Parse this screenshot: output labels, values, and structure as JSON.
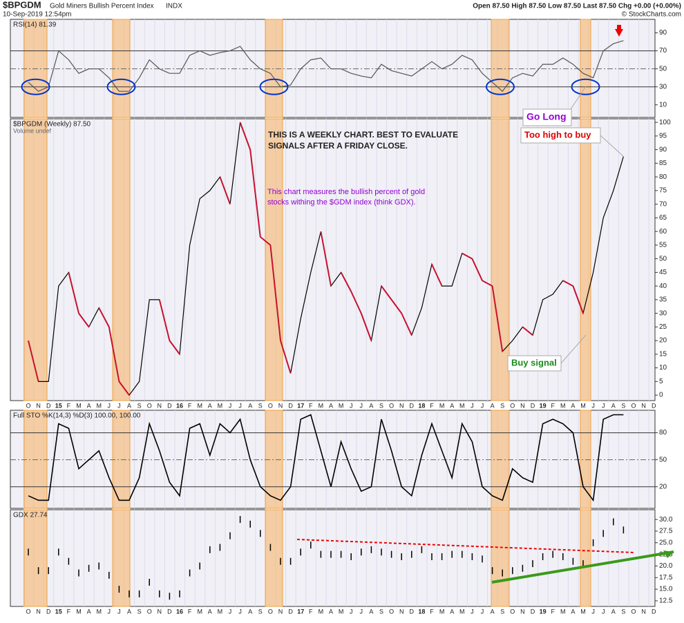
{
  "header": {
    "symbol": "$BPGDM",
    "name": "Gold Miners Bullish Percent Index",
    "exchange": "INDX",
    "date": "10-Sep-2019 12:54pm",
    "quote": "Open 87.50 High 87.50 Low 87.50 Last 87.50 Chg +0.00 (+0.00%)",
    "credit": "© StockCharts.com"
  },
  "annotations": {
    "weekly_note": [
      "THIS IS A WEEKLY CHART. BEST TO EVALUATE",
      "SIGNALS AFTER A FRIDAY CLOSE."
    ],
    "gdm_note": [
      "This chart measures the bullish percent of gold",
      "stocks withing the $GDM index (think GDX)."
    ],
    "go_long": "Go Long",
    "too_high": "Too high to buy",
    "buy_signal": "Buy signal"
  },
  "chart_data": [
    {
      "type": "line",
      "label": "RSI(14) 81.39",
      "color": "#555555",
      "ylim": [
        -4,
        105
      ],
      "yticks": [
        90,
        70,
        50,
        30,
        10
      ],
      "reference_lines": [
        70,
        50,
        30
      ],
      "values": [
        35,
        25,
        30,
        70,
        60,
        45,
        50,
        50,
        40,
        25,
        25,
        40,
        60,
        50,
        45,
        45,
        65,
        70,
        65,
        68,
        70,
        75,
        60,
        50,
        45,
        30,
        32,
        50,
        60,
        62,
        50,
        50,
        45,
        42,
        40,
        55,
        48,
        45,
        42,
        50,
        58,
        50,
        55,
        65,
        60,
        45,
        35,
        25,
        40,
        45,
        42,
        55,
        55,
        62,
        55,
        45,
        40,
        70,
        78,
        81.39,
        null,
        null,
        null
      ]
    },
    {
      "type": "line",
      "label": "$BPGDM (Weekly) 87.50",
      "sublabel": "Volume undef",
      "color": "#000000",
      "down_color": "#c8102e",
      "ylim": [
        -2,
        101.3
      ],
      "yticks": [
        100,
        95,
        90,
        85,
        80,
        75,
        70,
        65,
        60,
        55,
        50,
        45,
        40,
        35,
        30,
        25,
        20,
        15,
        10,
        5,
        0
      ],
      "categories": [
        "O",
        "N",
        "D",
        "15",
        "F",
        "M",
        "A",
        "M",
        "J",
        "J",
        "A",
        "S",
        "O",
        "N",
        "D",
        "16",
        "F",
        "M",
        "A",
        "M",
        "J",
        "J",
        "A",
        "S",
        "O",
        "N",
        "D",
        "17",
        "F",
        "M",
        "A",
        "M",
        "J",
        "J",
        "A",
        "S",
        "O",
        "N",
        "D",
        "18",
        "F",
        "M",
        "A",
        "M",
        "J",
        "J",
        "A",
        "S",
        "O",
        "N",
        "D",
        "19",
        "F",
        "M",
        "A",
        "M",
        "J",
        "J",
        "A",
        "S",
        "O",
        "N",
        "D"
      ],
      "values": [
        20,
        5,
        5,
        40,
        45,
        30,
        25,
        32,
        25,
        5,
        0,
        5,
        35,
        35,
        20,
        15,
        55,
        72,
        75,
        80,
        70,
        100,
        90,
        58,
        55,
        20,
        8,
        28,
        45,
        60,
        40,
        45,
        38,
        30,
        20,
        40,
        35,
        30,
        22,
        32,
        48,
        40,
        40,
        52,
        50,
        42,
        40,
        16,
        20,
        25,
        22,
        35,
        37,
        42,
        40,
        30,
        45,
        65,
        75,
        87.5,
        null,
        null,
        null
      ]
    },
    {
      "type": "line",
      "label": "Full STO %K(14,3) %D(3) 100.00, 100.00",
      "color": "#000000",
      "ylim": [
        -4,
        105
      ],
      "yticks": [
        80,
        50,
        20
      ],
      "reference_lines": [
        80,
        50,
        20
      ],
      "values": [
        10,
        5,
        5,
        90,
        85,
        40,
        50,
        60,
        30,
        5,
        5,
        30,
        90,
        60,
        25,
        10,
        85,
        90,
        55,
        90,
        80,
        95,
        50,
        20,
        10,
        5,
        20,
        95,
        100,
        60,
        20,
        70,
        40,
        15,
        20,
        95,
        60,
        20,
        10,
        55,
        90,
        60,
        30,
        90,
        70,
        20,
        10,
        5,
        40,
        30,
        25,
        90,
        95,
        90,
        80,
        20,
        5,
        95,
        100,
        100,
        null,
        null,
        null
      ]
    },
    {
      "type": "bar",
      "label": "GDX 27.74",
      "color": "#000000",
      "ylim": [
        11.3,
        32.1
      ],
      "yticks": [
        {
          "value": 30,
          "label": "30.0"
        },
        27.5,
        {
          "value": 25,
          "label": "25.0"
        },
        22.5,
        {
          "value": 20,
          "label": "20.0"
        },
        17.5,
        {
          "value": 15,
          "label": "15.0"
        },
        12.5
      ],
      "categories": [
        "O",
        "N",
        "D",
        "15",
        "F",
        "M",
        "A",
        "M",
        "J",
        "J",
        "A",
        "S",
        "O",
        "N",
        "D",
        "16",
        "F",
        "M",
        "A",
        "M",
        "J",
        "J",
        "A",
        "S",
        "O",
        "N",
        "D",
        "17",
        "F",
        "M",
        "A",
        "M",
        "J",
        "J",
        "A",
        "S",
        "O",
        "N",
        "D",
        "18",
        "F",
        "M",
        "A",
        "M",
        "J",
        "J",
        "A",
        "S",
        "O",
        "N",
        "D",
        "19",
        "F",
        "M",
        "A",
        "M",
        "J",
        "J",
        "A",
        "S",
        "O",
        "N",
        "D"
      ],
      "values": [
        23,
        19,
        19,
        23,
        21,
        18.5,
        19.5,
        20,
        18,
        15,
        14,
        14,
        16.5,
        14,
        13.5,
        14,
        18.5,
        20,
        23.5,
        24,
        26.5,
        30,
        29,
        27,
        24,
        21,
        21,
        23,
        24.5,
        22.5,
        22.5,
        22.5,
        22,
        23,
        23.5,
        23,
        22.5,
        22,
        22.5,
        23.5,
        22,
        22,
        22.5,
        22.5,
        22,
        21.5,
        19,
        18.5,
        19,
        19.5,
        20.5,
        22,
        22.5,
        22,
        21,
        20.5,
        25,
        27,
        29.5,
        27.74,
        null,
        null,
        null
      ]
    }
  ]
}
